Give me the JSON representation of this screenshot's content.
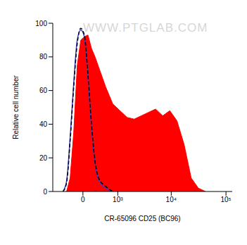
{
  "chart_data": {
    "type": "area",
    "xlabel": "CR-65096 CD25 (BC96)",
    "ylabel": "Relative cell number",
    "annotations": [
      "WWW.PTGLAB.COM"
    ],
    "xlim": [
      -800,
      130000
    ],
    "xticks": [
      0,
      {
        "value": 1000,
        "label": "10³"
      },
      {
        "value": 10000,
        "label": "10⁴"
      },
      {
        "value": 100000,
        "label": "10⁵"
      }
    ],
    "ylim": [
      0,
      100
    ],
    "yticks": [
      0,
      20,
      40,
      60,
      80,
      100
    ],
    "series": [
      {
        "type": "area",
        "color": "#ff0000",
        "x": [
          -364,
          -276,
          -195,
          -118,
          -44,
          29,
          103,
          180,
          260,
          346,
          545,
          789,
          1110,
          1527,
          2083,
          2827,
          3826,
          5173,
          6985,
          9430,
          12720,
          17160,
          23170,
          31260,
          42160
        ],
        "values": [
          0,
          8,
          35,
          75,
          90,
          92,
          93,
          85,
          80,
          74,
          62,
          52,
          48,
          44,
          43,
          45,
          47,
          49,
          45,
          48,
          42,
          28,
          8,
          2,
          0
        ]
      },
      {
        "type": "line",
        "color": "#3a3ad0",
        "x": [
          -460,
          -364,
          -276,
          -195,
          -118,
          -44,
          29,
          103,
          180,
          260,
          346,
          545,
          789
        ],
        "values": [
          0,
          6,
          32,
          64,
          90,
          96,
          92,
          68,
          38,
          17,
          7,
          2,
          0
        ]
      },
      {
        "type": "line",
        "color": "#000000",
        "line_style": "dashed",
        "x": [
          -460,
          -364,
          -276,
          -195,
          -118,
          -44,
          29,
          103,
          180,
          260,
          346,
          545,
          789
        ],
        "values": [
          0,
          5,
          30,
          62,
          88,
          97,
          93,
          70,
          40,
          18,
          8,
          3,
          0
        ]
      }
    ]
  }
}
